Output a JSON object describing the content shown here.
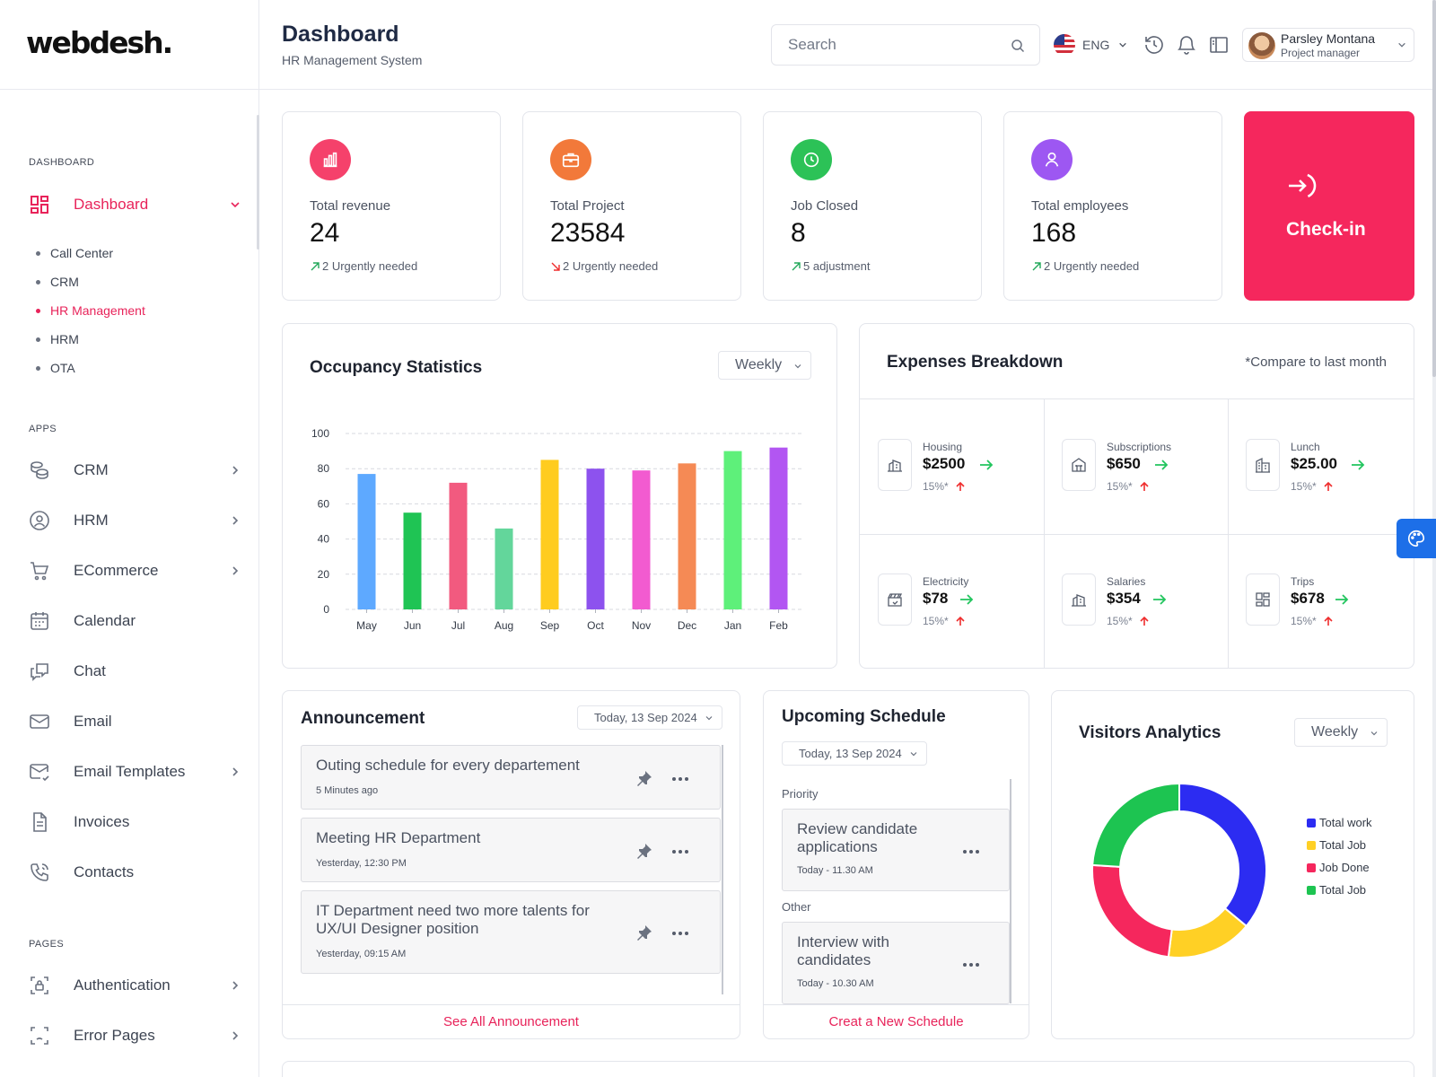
{
  "brand": {
    "logo": "webdesh."
  },
  "header": {
    "title": "Dashboard",
    "subtitle": "HR Management System",
    "search_placeholder": "Search",
    "language": "ENG"
  },
  "user": {
    "name": "Parsley Montana",
    "role": "Project manager"
  },
  "sidebar": {
    "sections": {
      "dashboard": "DASHBOARD",
      "apps": "APPS",
      "pages": "PAGES"
    },
    "dashboard_item": "Dashboard",
    "sub_items": [
      "Call Center",
      "CRM",
      "HR Management",
      "HRM",
      "OTA"
    ],
    "apps": {
      "crm": "CRM",
      "hrm": "HRM",
      "ecommerce": "ECommerce",
      "calendar": "Calendar",
      "chat": "Chat",
      "email": "Email",
      "email_templates": "Email Templates",
      "invoices": "Invoices",
      "contacts": "Contacts"
    },
    "pages": {
      "authentication": "Authentication",
      "error_pages": "Error Pages"
    }
  },
  "stats": [
    {
      "label": "Total revenue",
      "value": "24",
      "note": "2 Urgently needed",
      "trend": "up",
      "color": "#f5416b"
    },
    {
      "label": "Total Project",
      "value": "23584",
      "note": "2 Urgently needed",
      "trend": "down",
      "color": "#f2793a"
    },
    {
      "label": "Job Closed",
      "value": "8",
      "note": "5 adjustment",
      "trend": "up",
      "color": "#2cc257"
    },
    {
      "label": "Total employees",
      "value": "168",
      "note": "2 Urgently needed",
      "trend": "up",
      "color": "#9d57f2"
    }
  ],
  "checkin": {
    "label": "Check-in"
  },
  "occupancy": {
    "title": "Occupancy Statistics",
    "period": "Weekly"
  },
  "expenses": {
    "title": "Expenses Breakdown",
    "compare": "*Compare to last month",
    "items": [
      {
        "label": "Housing",
        "value": "$2500",
        "percent": "15%*"
      },
      {
        "label": "Subscriptions",
        "value": "$650",
        "percent": "15%*"
      },
      {
        "label": "Lunch",
        "value": "$25.00",
        "percent": "15%*"
      },
      {
        "label": "Electricity",
        "value": "$78",
        "percent": "15%*"
      },
      {
        "label": "Salaries",
        "value": "$354",
        "percent": "15%*"
      },
      {
        "label": "Trips",
        "value": "$678",
        "percent": "15%*"
      }
    ]
  },
  "announcement": {
    "title": "Announcement",
    "date": "Today, 13 Sep 2024",
    "items": [
      {
        "title": "Outing schedule for every departement",
        "time": "5 Minutes ago"
      },
      {
        "title": "Meeting HR Department",
        "time": "Yesterday, 12:30 PM"
      },
      {
        "title": "IT Department need two more talents for UX/UI Designer position",
        "time": "Yesterday, 09:15 AM"
      }
    ],
    "footer": "See All Announcement"
  },
  "schedule": {
    "title": "Upcoming Schedule",
    "date": "Today, 13 Sep 2024",
    "priority_label": "Priority",
    "other_label": "Other",
    "items": [
      {
        "title": "Review candidate applications",
        "time": "Today - 11.30 AM"
      },
      {
        "title": "Interview with candidates",
        "time": "Today - 10.30 AM"
      }
    ],
    "footer": "Creat a New Schedule"
  },
  "visitors": {
    "title": "Visitors Analytics",
    "period": "Weekly",
    "legend": [
      "Total work",
      "Total Job",
      "Job Done",
      "Total Job"
    ]
  },
  "chart_data": [
    {
      "type": "bar",
      "title": "Occupancy Statistics",
      "categories": [
        "May",
        "Jun",
        "Jul",
        "Aug",
        "Sep",
        "Oct",
        "Nov",
        "Dec",
        "Jan",
        "Feb"
      ],
      "values": [
        77,
        55,
        72,
        46,
        85,
        80,
        79,
        83,
        90,
        92
      ],
      "colors": [
        "#5ea9ff",
        "#1fc454",
        "#f25a7f",
        "#63d69b",
        "#ffcc1f",
        "#8d52ee",
        "#f25bd0",
        "#f58a55",
        "#5ef07a",
        "#b256f2"
      ],
      "yticks": [
        0,
        20,
        40,
        60,
        80,
        100
      ],
      "ylim": [
        0,
        100
      ],
      "xlabel": "",
      "ylabel": "",
      "grid": true
    },
    {
      "type": "pie",
      "title": "Visitors Analytics",
      "labels": [
        "Total work",
        "Total Job",
        "Job Done",
        "Total Job"
      ],
      "values": [
        36,
        16,
        24,
        24
      ],
      "colors": [
        "#2c2cf2",
        "#ffd025",
        "#f5275d",
        "#1dc451"
      ]
    }
  ]
}
